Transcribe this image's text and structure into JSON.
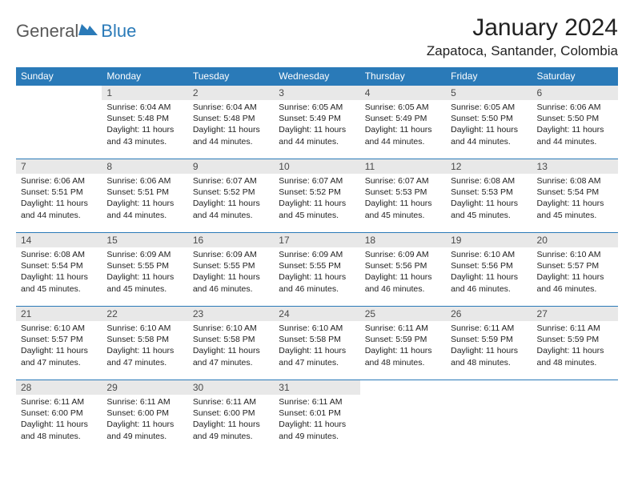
{
  "logo": {
    "general": "General",
    "blue": "Blue",
    "icon_color": "#2a7ab8"
  },
  "title": "January 2024",
  "location": "Zapatoca, Santander, Colombia",
  "weekdays": [
    "Sunday",
    "Monday",
    "Tuesday",
    "Wednesday",
    "Thursday",
    "Friday",
    "Saturday"
  ],
  "header_bg": "#2a7ab8",
  "header_fg": "#ffffff",
  "daynum_bg": "#e8e8e8",
  "row_border": "#2a7ab8",
  "weeks": [
    [
      null,
      {
        "n": "1",
        "sr": "Sunrise: 6:04 AM",
        "ss": "Sunset: 5:48 PM",
        "d1": "Daylight: 11 hours",
        "d2": "and 43 minutes."
      },
      {
        "n": "2",
        "sr": "Sunrise: 6:04 AM",
        "ss": "Sunset: 5:48 PM",
        "d1": "Daylight: 11 hours",
        "d2": "and 44 minutes."
      },
      {
        "n": "3",
        "sr": "Sunrise: 6:05 AM",
        "ss": "Sunset: 5:49 PM",
        "d1": "Daylight: 11 hours",
        "d2": "and 44 minutes."
      },
      {
        "n": "4",
        "sr": "Sunrise: 6:05 AM",
        "ss": "Sunset: 5:49 PM",
        "d1": "Daylight: 11 hours",
        "d2": "and 44 minutes."
      },
      {
        "n": "5",
        "sr": "Sunrise: 6:05 AM",
        "ss": "Sunset: 5:50 PM",
        "d1": "Daylight: 11 hours",
        "d2": "and 44 minutes."
      },
      {
        "n": "6",
        "sr": "Sunrise: 6:06 AM",
        "ss": "Sunset: 5:50 PM",
        "d1": "Daylight: 11 hours",
        "d2": "and 44 minutes."
      }
    ],
    [
      {
        "n": "7",
        "sr": "Sunrise: 6:06 AM",
        "ss": "Sunset: 5:51 PM",
        "d1": "Daylight: 11 hours",
        "d2": "and 44 minutes."
      },
      {
        "n": "8",
        "sr": "Sunrise: 6:06 AM",
        "ss": "Sunset: 5:51 PM",
        "d1": "Daylight: 11 hours",
        "d2": "and 44 minutes."
      },
      {
        "n": "9",
        "sr": "Sunrise: 6:07 AM",
        "ss": "Sunset: 5:52 PM",
        "d1": "Daylight: 11 hours",
        "d2": "and 44 minutes."
      },
      {
        "n": "10",
        "sr": "Sunrise: 6:07 AM",
        "ss": "Sunset: 5:52 PM",
        "d1": "Daylight: 11 hours",
        "d2": "and 45 minutes."
      },
      {
        "n": "11",
        "sr": "Sunrise: 6:07 AM",
        "ss": "Sunset: 5:53 PM",
        "d1": "Daylight: 11 hours",
        "d2": "and 45 minutes."
      },
      {
        "n": "12",
        "sr": "Sunrise: 6:08 AM",
        "ss": "Sunset: 5:53 PM",
        "d1": "Daylight: 11 hours",
        "d2": "and 45 minutes."
      },
      {
        "n": "13",
        "sr": "Sunrise: 6:08 AM",
        "ss": "Sunset: 5:54 PM",
        "d1": "Daylight: 11 hours",
        "d2": "and 45 minutes."
      }
    ],
    [
      {
        "n": "14",
        "sr": "Sunrise: 6:08 AM",
        "ss": "Sunset: 5:54 PM",
        "d1": "Daylight: 11 hours",
        "d2": "and 45 minutes."
      },
      {
        "n": "15",
        "sr": "Sunrise: 6:09 AM",
        "ss": "Sunset: 5:55 PM",
        "d1": "Daylight: 11 hours",
        "d2": "and 45 minutes."
      },
      {
        "n": "16",
        "sr": "Sunrise: 6:09 AM",
        "ss": "Sunset: 5:55 PM",
        "d1": "Daylight: 11 hours",
        "d2": "and 46 minutes."
      },
      {
        "n": "17",
        "sr": "Sunrise: 6:09 AM",
        "ss": "Sunset: 5:55 PM",
        "d1": "Daylight: 11 hours",
        "d2": "and 46 minutes."
      },
      {
        "n": "18",
        "sr": "Sunrise: 6:09 AM",
        "ss": "Sunset: 5:56 PM",
        "d1": "Daylight: 11 hours",
        "d2": "and 46 minutes."
      },
      {
        "n": "19",
        "sr": "Sunrise: 6:10 AM",
        "ss": "Sunset: 5:56 PM",
        "d1": "Daylight: 11 hours",
        "d2": "and 46 minutes."
      },
      {
        "n": "20",
        "sr": "Sunrise: 6:10 AM",
        "ss": "Sunset: 5:57 PM",
        "d1": "Daylight: 11 hours",
        "d2": "and 46 minutes."
      }
    ],
    [
      {
        "n": "21",
        "sr": "Sunrise: 6:10 AM",
        "ss": "Sunset: 5:57 PM",
        "d1": "Daylight: 11 hours",
        "d2": "and 47 minutes."
      },
      {
        "n": "22",
        "sr": "Sunrise: 6:10 AM",
        "ss": "Sunset: 5:58 PM",
        "d1": "Daylight: 11 hours",
        "d2": "and 47 minutes."
      },
      {
        "n": "23",
        "sr": "Sunrise: 6:10 AM",
        "ss": "Sunset: 5:58 PM",
        "d1": "Daylight: 11 hours",
        "d2": "and 47 minutes."
      },
      {
        "n": "24",
        "sr": "Sunrise: 6:10 AM",
        "ss": "Sunset: 5:58 PM",
        "d1": "Daylight: 11 hours",
        "d2": "and 47 minutes."
      },
      {
        "n": "25",
        "sr": "Sunrise: 6:11 AM",
        "ss": "Sunset: 5:59 PM",
        "d1": "Daylight: 11 hours",
        "d2": "and 48 minutes."
      },
      {
        "n": "26",
        "sr": "Sunrise: 6:11 AM",
        "ss": "Sunset: 5:59 PM",
        "d1": "Daylight: 11 hours",
        "d2": "and 48 minutes."
      },
      {
        "n": "27",
        "sr": "Sunrise: 6:11 AM",
        "ss": "Sunset: 5:59 PM",
        "d1": "Daylight: 11 hours",
        "d2": "and 48 minutes."
      }
    ],
    [
      {
        "n": "28",
        "sr": "Sunrise: 6:11 AM",
        "ss": "Sunset: 6:00 PM",
        "d1": "Daylight: 11 hours",
        "d2": "and 48 minutes."
      },
      {
        "n": "29",
        "sr": "Sunrise: 6:11 AM",
        "ss": "Sunset: 6:00 PM",
        "d1": "Daylight: 11 hours",
        "d2": "and 49 minutes."
      },
      {
        "n": "30",
        "sr": "Sunrise: 6:11 AM",
        "ss": "Sunset: 6:00 PM",
        "d1": "Daylight: 11 hours",
        "d2": "and 49 minutes."
      },
      {
        "n": "31",
        "sr": "Sunrise: 6:11 AM",
        "ss": "Sunset: 6:01 PM",
        "d1": "Daylight: 11 hours",
        "d2": "and 49 minutes."
      },
      null,
      null,
      null
    ]
  ]
}
